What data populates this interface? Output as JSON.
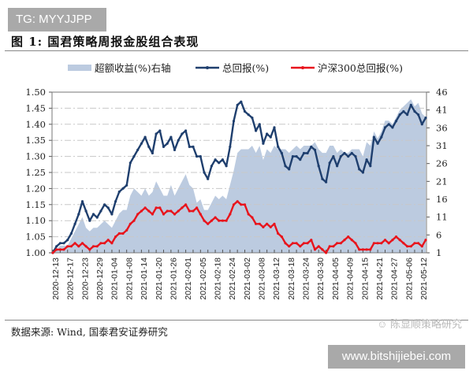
{
  "watermark_top": "TG: MYYJJPP",
  "figure_title": "图 1:  国君策略周报金股组合表现",
  "source_note": "数据来源: Wind, 国泰君安证券研究",
  "wechat_watermark": "陈显顺策略研究",
  "watermark_bottom": "www.bitshijiebei.com",
  "legend": {
    "excess": "超额收益(%)右轴",
    "total": "总回报(%)",
    "hs300": "沪深300总回报(%)"
  },
  "colors": {
    "excess_area": "#bccbe0",
    "total_line": "#1f3f6e",
    "hs300_line": "#e8141c",
    "grid": "#c8c8c8"
  },
  "chart_data": {
    "type": "line",
    "title": "国君策略周报金股组合表现",
    "xlabel": "",
    "ylabel": "",
    "ylim": [
      1.0,
      1.5
    ],
    "y2lim": [
      1,
      46
    ],
    "grid": true,
    "legend_position": "top",
    "left_ticks": [
      "1.00",
      "1.05",
      "1.10",
      "1.15",
      "1.20",
      "1.25",
      "1.30",
      "1.35",
      "1.40",
      "1.45",
      "1.50"
    ],
    "right_ticks": [
      "1",
      "6",
      "11",
      "16",
      "21",
      "26",
      "31",
      "36",
      "41",
      "46"
    ],
    "x_tick_labels": [
      "2020-12-13",
      "2020-12-17",
      "2020-12-23",
      "2020-12-29",
      "2021-01-04",
      "2021-01-08",
      "2021-01-14",
      "2021-01-20",
      "2021-01-26",
      "2021-02-01",
      "2021-02-05",
      "2021-02-18",
      "2021-02-24",
      "2021-03-02",
      "2021-03-08",
      "2021-03-12",
      "2021-03-18",
      "2021-03-24",
      "2021-03-30",
      "2021-04-05",
      "2021-04-09",
      "2021-04-15",
      "2021-04-21",
      "2021-04-27",
      "2021-05-06",
      "2021-05-12"
    ],
    "series": [
      {
        "name": "总回报(%)",
        "axis": "left",
        "type": "line",
        "values": [
          1.0,
          1.02,
          1.03,
          1.03,
          1.04,
          1.06,
          1.09,
          1.12,
          1.16,
          1.13,
          1.1,
          1.12,
          1.11,
          1.13,
          1.15,
          1.14,
          1.12,
          1.16,
          1.19,
          1.2,
          1.21,
          1.28,
          1.3,
          1.32,
          1.34,
          1.36,
          1.33,
          1.31,
          1.37,
          1.38,
          1.33,
          1.34,
          1.36,
          1.32,
          1.35,
          1.37,
          1.38,
          1.33,
          1.33,
          1.3,
          1.3,
          1.25,
          1.23,
          1.27,
          1.29,
          1.28,
          1.29,
          1.27,
          1.33,
          1.41,
          1.46,
          1.47,
          1.44,
          1.43,
          1.42,
          1.38,
          1.4,
          1.34,
          1.37,
          1.36,
          1.39,
          1.33,
          1.31,
          1.27,
          1.26,
          1.3,
          1.3,
          1.29,
          1.31,
          1.31,
          1.33,
          1.32,
          1.27,
          1.23,
          1.22,
          1.28,
          1.3,
          1.27,
          1.3,
          1.31,
          1.3,
          1.31,
          1.3,
          1.26,
          1.25,
          1.29,
          1.27,
          1.36,
          1.34,
          1.36,
          1.39,
          1.4,
          1.39,
          1.41,
          1.43,
          1.44,
          1.43,
          1.46,
          1.44,
          1.43,
          1.4,
          1.42
        ]
      },
      {
        "name": "沪深300总回报(%)",
        "axis": "left",
        "type": "line",
        "values": [
          1.0,
          1.01,
          1.01,
          1.01,
          1.02,
          1.02,
          1.03,
          1.02,
          1.03,
          1.02,
          1.01,
          1.02,
          1.02,
          1.03,
          1.03,
          1.04,
          1.03,
          1.05,
          1.06,
          1.06,
          1.07,
          1.09,
          1.1,
          1.12,
          1.13,
          1.14,
          1.13,
          1.12,
          1.14,
          1.14,
          1.12,
          1.13,
          1.13,
          1.12,
          1.13,
          1.14,
          1.15,
          1.13,
          1.13,
          1.14,
          1.12,
          1.1,
          1.09,
          1.1,
          1.11,
          1.1,
          1.1,
          1.1,
          1.12,
          1.15,
          1.16,
          1.15,
          1.15,
          1.12,
          1.11,
          1.09,
          1.09,
          1.08,
          1.09,
          1.08,
          1.09,
          1.06,
          1.05,
          1.03,
          1.02,
          1.03,
          1.03,
          1.02,
          1.03,
          1.03,
          1.04,
          1.01,
          1.02,
          1.01,
          1.0,
          1.02,
          1.02,
          1.03,
          1.03,
          1.04,
          1.05,
          1.04,
          1.03,
          1.01,
          1.01,
          1.01,
          1.01,
          1.03,
          1.03,
          1.03,
          1.04,
          1.03,
          1.04,
          1.05,
          1.04,
          1.03,
          1.02,
          1.02,
          1.03,
          1.03,
          1.02,
          1.04
        ]
      },
      {
        "name": "超额收益(%)右轴",
        "axis": "right",
        "type": "area",
        "values": [
          1,
          2,
          3,
          3,
          3,
          5,
          7,
          9,
          11,
          8,
          7,
          8,
          8,
          9,
          10,
          9,
          8,
          10,
          12,
          13,
          13,
          17,
          19,
          18,
          17,
          19,
          17,
          18,
          21,
          19,
          17,
          17,
          20,
          17,
          19,
          21,
          23,
          20,
          19,
          15,
          16,
          13,
          13,
          15,
          17,
          16,
          17,
          16,
          20,
          24,
          29,
          30,
          30,
          30,
          31,
          29,
          31,
          27,
          30,
          29,
          31,
          30,
          30,
          30,
          29,
          30,
          31,
          30,
          31,
          31,
          31,
          32,
          30,
          29,
          29,
          31,
          31,
          29,
          30,
          29,
          29,
          30,
          30,
          30,
          28,
          32,
          31,
          35,
          33,
          35,
          38,
          38,
          37,
          39,
          41,
          42,
          43,
          44,
          42,
          43,
          40,
          39
        ]
      }
    ]
  }
}
